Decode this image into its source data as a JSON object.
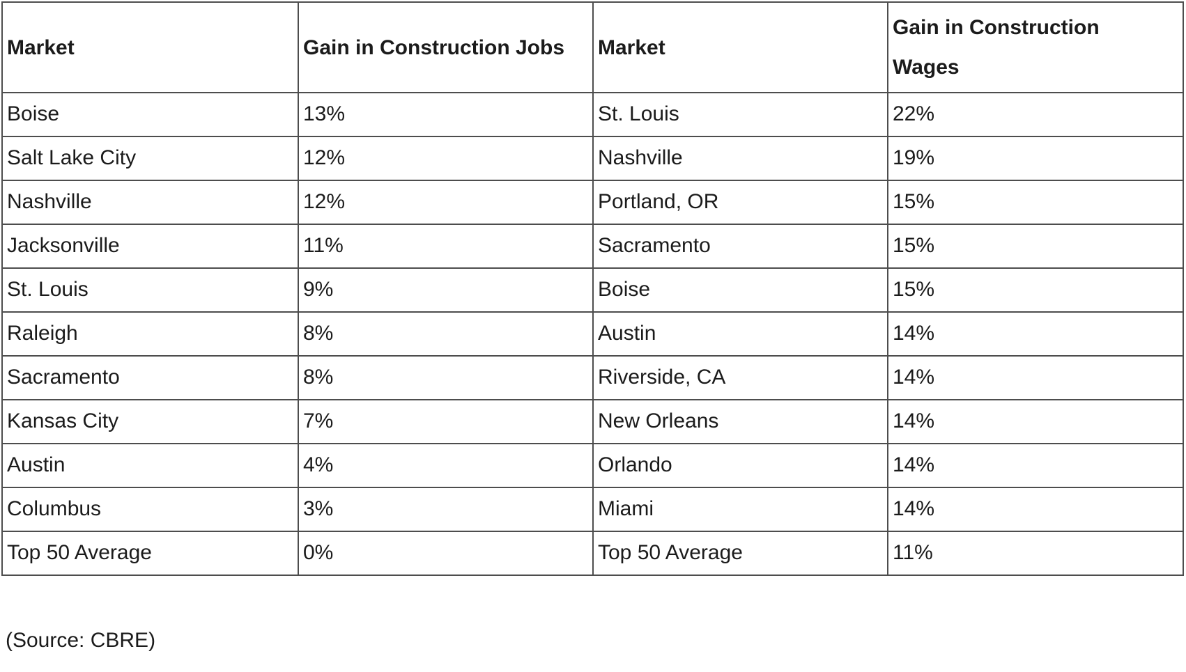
{
  "table": {
    "columns": [
      {
        "header": "Market"
      },
      {
        "header": "Gain in Construction Jobs"
      },
      {
        "header": "Market"
      },
      {
        "header": "Gain in Construction Wages"
      }
    ],
    "rows": [
      [
        "Boise",
        "13%",
        "St. Louis",
        "22%"
      ],
      [
        "Salt Lake City",
        "12%",
        "Nashville",
        "19%"
      ],
      [
        "Nashville",
        "12%",
        "Portland, OR",
        "15%"
      ],
      [
        "Jacksonville",
        "11%",
        "Sacramento",
        "15%"
      ],
      [
        "St. Louis",
        "9%",
        "Boise",
        "15%"
      ],
      [
        "Raleigh",
        "8%",
        "Austin",
        "14%"
      ],
      [
        "Sacramento",
        "8%",
        "Riverside, CA",
        "14%"
      ],
      [
        "Kansas City",
        "7%",
        "New Orleans",
        "14%"
      ],
      [
        "Austin",
        "4%",
        "Orlando",
        "14%"
      ],
      [
        "Columbus",
        "3%",
        "Miami",
        "14%"
      ],
      [
        "Top 50 Average",
        "0%",
        "Top 50 Average",
        "11%"
      ]
    ]
  },
  "source_note": "(Source: CBRE)",
  "colors": {
    "border": "#4d4d4d",
    "text": "#1b1b1b",
    "background": "#ffffff"
  }
}
